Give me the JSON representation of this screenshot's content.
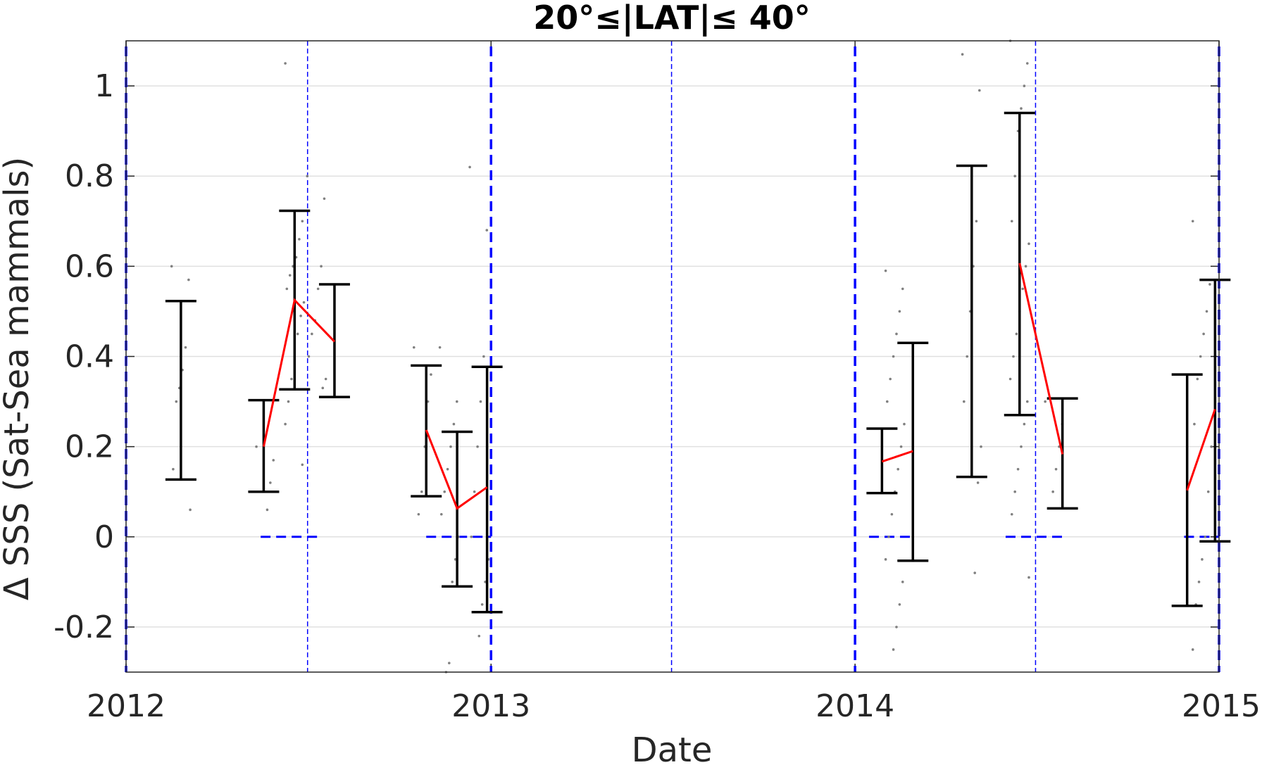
{
  "chart_data": {
    "type": "scatter",
    "title": "20°≤|LAT|≤ 40°",
    "xlabel": "Date",
    "ylabel": "Δ SSS (Sat-Sea mammals)",
    "xlim": [
      "2012-01-01",
      "2015-01-01"
    ],
    "ylim": [
      -0.3,
      1.1
    ],
    "x_tick_labels": [
      "2012",
      "2013",
      "2014",
      "2015"
    ],
    "y_ticks": [
      -0.2,
      0,
      0.2,
      0.4,
      0.6,
      0.8,
      1
    ],
    "y_tick_labels": [
      "-0.2",
      "0",
      "0.2",
      "0.4",
      "0.6",
      "0.8",
      "1"
    ],
    "grid": "horizontal",
    "colors": {
      "errorbar": "#000000",
      "mean_line": "#ff0000",
      "reference_lines": "#0000ff",
      "samples": "#808080"
    },
    "year_boundaries": [
      "2012-01-01",
      "2013-01-01",
      "2014-01-01",
      "2015-01-01"
    ],
    "mid_year_lines": [
      "2012-07-01",
      "2013-07-01",
      "2014-07-01"
    ],
    "zero_segments": [
      {
        "x_start": "2012-05-15",
        "x_end": "2012-07-15"
      },
      {
        "x_start": "2012-10-28",
        "x_end": "2013-01-01"
      },
      {
        "x_start": "2014-01-15",
        "x_end": "2014-03-01"
      },
      {
        "x_start": "2014-06-01",
        "x_end": "2014-07-31"
      },
      {
        "x_start": "2014-11-27",
        "x_end": "2015-01-01"
      }
    ],
    "errorbars": [
      {
        "x": "2012-02-25",
        "low": 0.127,
        "high": 0.523
      },
      {
        "x": "2012-05-18",
        "low": 0.1,
        "high": 0.303
      },
      {
        "x": "2012-06-18",
        "low": 0.327,
        "high": 0.723
      },
      {
        "x": "2012-07-28",
        "low": 0.31,
        "high": 0.56
      },
      {
        "x": "2012-10-28",
        "low": 0.09,
        "high": 0.38
      },
      {
        "x": "2012-11-28",
        "low": -0.11,
        "high": 0.233
      },
      {
        "x": "2012-12-28",
        "low": -0.167,
        "high": 0.377
      },
      {
        "x": "2014-01-28",
        "low": 0.097,
        "high": 0.24
      },
      {
        "x": "2014-02-28",
        "low": -0.053,
        "high": 0.43
      },
      {
        "x": "2014-04-28",
        "low": 0.133,
        "high": 0.823
      },
      {
        "x": "2014-06-15",
        "low": 0.27,
        "high": 0.94
      },
      {
        "x": "2014-07-28",
        "low": 0.063,
        "high": 0.307
      },
      {
        "x": "2014-11-30",
        "low": -0.153,
        "high": 0.36
      },
      {
        "x": "2014-12-28",
        "low": -0.01,
        "high": 0.57
      }
    ],
    "mean_segments": [
      [
        {
          "x": "2012-05-18",
          "y": 0.2
        },
        {
          "x": "2012-06-18",
          "y": 0.525
        },
        {
          "x": "2012-07-28",
          "y": 0.433
        }
      ],
      [
        {
          "x": "2012-10-28",
          "y": 0.237
        },
        {
          "x": "2012-11-28",
          "y": 0.063
        },
        {
          "x": "2012-12-28",
          "y": 0.11
        }
      ],
      [
        {
          "x": "2014-01-28",
          "y": 0.167
        },
        {
          "x": "2014-02-28",
          "y": 0.19
        }
      ],
      [
        {
          "x": "2014-06-15",
          "y": 0.607
        },
        {
          "x": "2014-07-28",
          "y": 0.183
        }
      ],
      [
        {
          "x": "2014-11-30",
          "y": 0.103
        },
        {
          "x": "2014-12-28",
          "y": 0.283
        }
      ]
    ],
    "samples": [
      {
        "x": "2012-02-25",
        "y": [
          0.6,
          0.57,
          0.42,
          0.37,
          0.33,
          0.3,
          0.15,
          0.06
        ]
      },
      {
        "x": "2012-05-20",
        "y": [
          0.2,
          0.17,
          0.12,
          0.06
        ]
      },
      {
        "x": "2012-06-18",
        "y": [
          1.05,
          0.7,
          0.66,
          0.62,
          0.6,
          0.58,
          0.55,
          0.52,
          0.49,
          0.45,
          0.4,
          0.35,
          0.3,
          0.25,
          0.16
        ]
      },
      {
        "x": "2012-07-10",
        "y": [
          0.8,
          0.75,
          0.6,
          0.55,
          0.48,
          0.45,
          0.4,
          0.35,
          0.33
        ]
      },
      {
        "x": "2012-10-25",
        "y": [
          0.42,
          0.36,
          0.3,
          0.2,
          0.1,
          0.05
        ]
      },
      {
        "x": "2012-11-20",
        "y": [
          0.42,
          0.3,
          0.25,
          0.2,
          0.15,
          0.1,
          0.05,
          0.0,
          -0.05,
          -0.1,
          -0.28,
          -0.3
        ]
      },
      {
        "x": "2012-12-20",
        "y": [
          0.82,
          0.68,
          0.4,
          0.3,
          0.2,
          0.1,
          0.0,
          -0.05,
          -0.1,
          -0.15,
          -0.22
        ]
      },
      {
        "x": "2014-02-10",
        "y": [
          0.59,
          0.55,
          0.5,
          0.45,
          0.4,
          0.35,
          0.3,
          0.25,
          0.2,
          0.15,
          0.1,
          0.05,
          0.0,
          -0.05,
          -0.1,
          -0.15,
          -0.2,
          -0.25
        ]
      },
      {
        "x": "2014-04-28",
        "y": [
          1.07,
          0.99,
          0.7,
          0.6,
          0.5,
          0.4,
          0.3,
          0.2,
          0.12,
          -0.08
        ]
      },
      {
        "x": "2014-06-15",
        "y": [
          1.1,
          1.05,
          1.0,
          0.95,
          0.9,
          0.8,
          0.7,
          0.65,
          0.6,
          0.55,
          0.5,
          0.45,
          0.4,
          0.35,
          0.3,
          0.25,
          0.2,
          0.15,
          0.1,
          0.05,
          -0.09
        ]
      },
      {
        "x": "2014-07-20",
        "y": [
          0.3,
          0.25,
          0.2,
          0.15,
          0.1
        ]
      },
      {
        "x": "2014-12-15",
        "y": [
          0.7,
          0.56,
          0.5,
          0.45,
          0.4,
          0.35,
          0.25,
          0.2,
          0.1,
          0.0,
          -0.05,
          -0.1,
          -0.15,
          -0.25
        ]
      }
    ]
  }
}
